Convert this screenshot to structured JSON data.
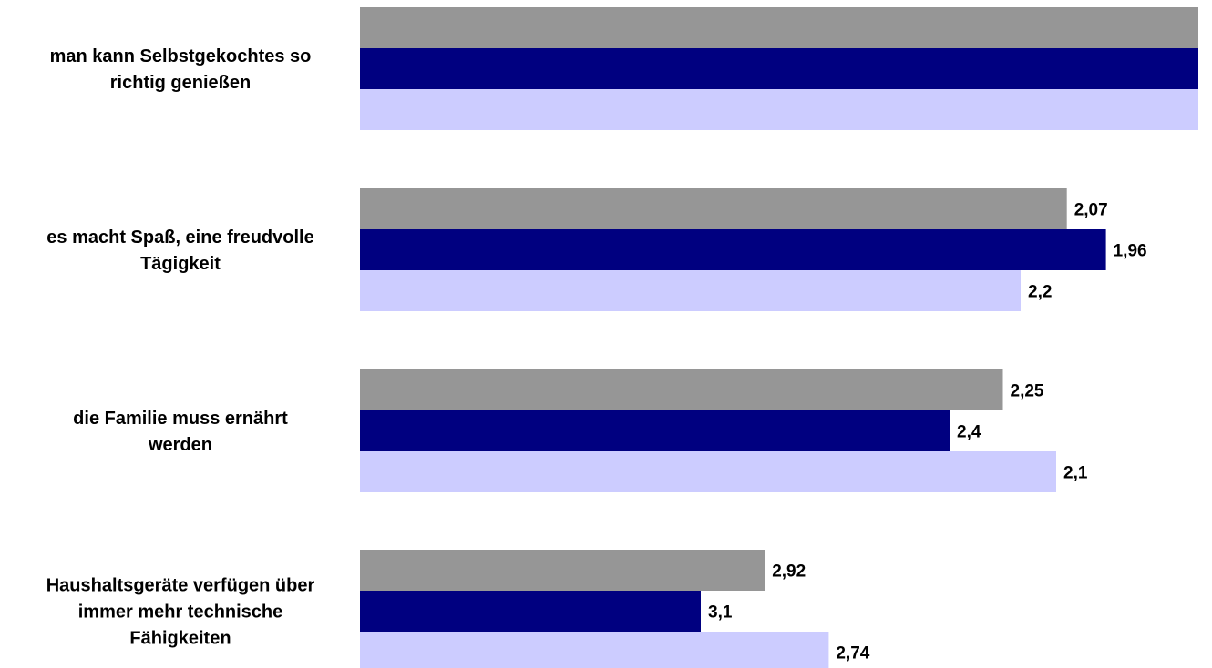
{
  "chart_data": {
    "type": "bar",
    "orientation": "horizontal",
    "categories": [
      "man kann Selbstgekochtes so richtig genießen",
      "es macht Spaß, eine freudvolle Tägigkeit",
      "die Familie muss ernährt werden",
      "Haushaltsgeräte verfügen über immer mehr technische Fähigkeiten"
    ],
    "category_lines": [
      [
        "man kann Selbstgekochtes so",
        "richtig genießen"
      ],
      [
        "es macht Spaß, eine freudvolle",
        "Tägigkeit"
      ],
      [
        "die Familie muss ernährt",
        "werden"
      ],
      [
        "Haushaltsgeräte verfügen über",
        "immer mehr technische",
        "Fähigkeiten"
      ]
    ],
    "series": [
      {
        "color": "#969696",
        "values": [
          1.7,
          2.07,
          2.25,
          2.92
        ],
        "labels": [
          "",
          "2,07",
          "2,25",
          "2,92"
        ]
      },
      {
        "color": "#000080",
        "values": [
          1.7,
          1.96,
          2.4,
          3.1
        ],
        "labels": [
          "",
          "1,96",
          "2,4",
          "3,1"
        ]
      },
      {
        "color": "#CCCCFF",
        "values": [
          1.7,
          2.2,
          2.1,
          2.74
        ],
        "labels": [
          "",
          "2,2",
          "2,1",
          "2,74"
        ]
      }
    ],
    "axis": {
      "direction": "reversed",
      "reference_value": 1.7,
      "note_first_category": "bars extend to the full plot width, no value labels shown"
    },
    "legend": "none",
    "grid": false,
    "title": "",
    "xlabel": "",
    "ylabel": ""
  }
}
